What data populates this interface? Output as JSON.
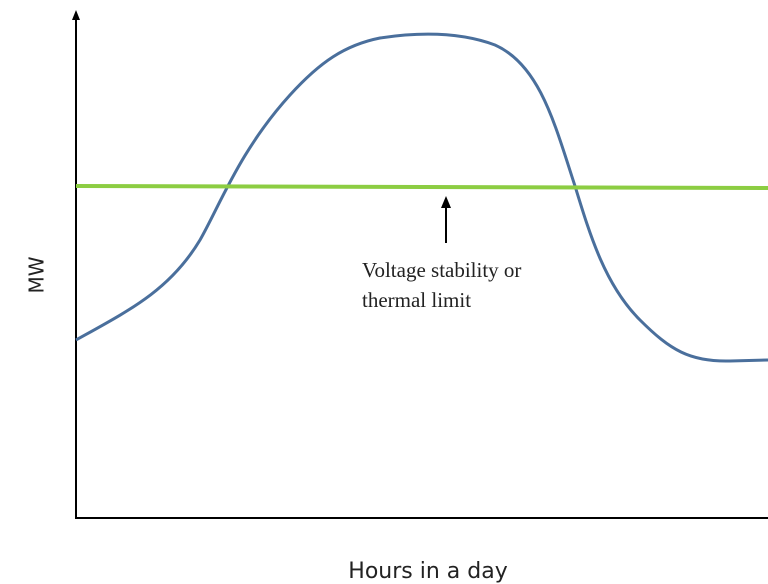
{
  "x_label": "Hours in a day",
  "y_label": "MW",
  "annotation": [
    "Voltage stability or",
    "thermal limit"
  ]
}
